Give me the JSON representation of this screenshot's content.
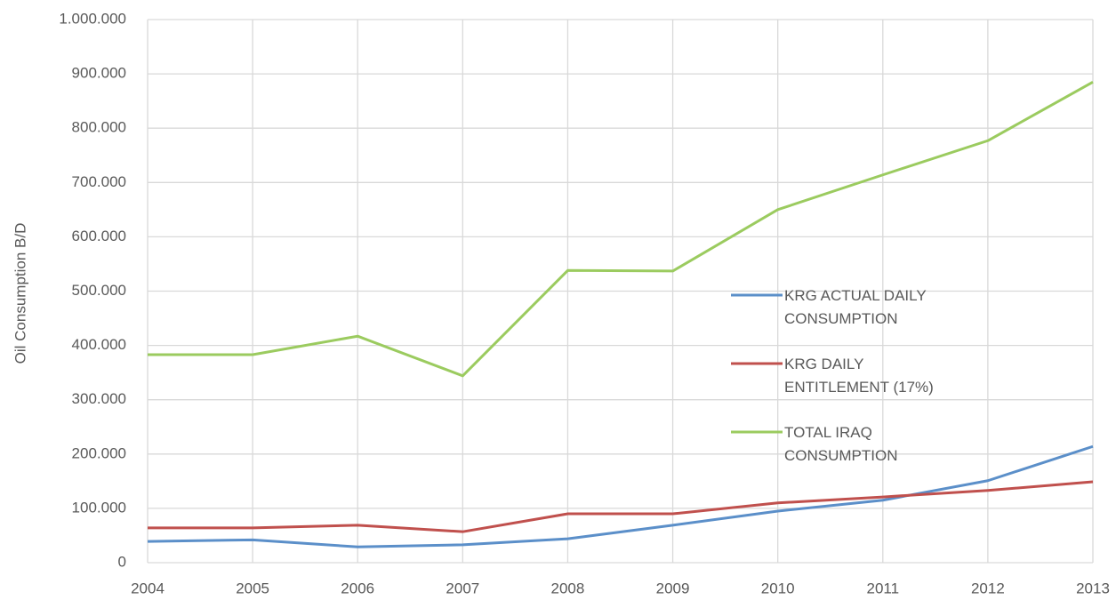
{
  "chart_data": {
    "type": "line",
    "y_label": "Oil Consumption B/D",
    "x": [
      2004,
      2005,
      2006,
      2007,
      2008,
      2009,
      2010,
      2011,
      2012,
      2013
    ],
    "xlim": [
      2004,
      2013
    ],
    "xticks": [
      2004,
      2005,
      2006,
      2007,
      2008,
      2009,
      2010,
      2011,
      2012,
      2013
    ],
    "ylim": [
      0,
      1000000
    ],
    "yticks": [
      0,
      {
        "value": 100000,
        "label": "100.000"
      },
      {
        "value": 200000,
        "label": "200.000"
      },
      {
        "value": 300000,
        "label": "300.000"
      },
      {
        "value": 400000,
        "label": "400.000"
      },
      {
        "value": 500000,
        "label": "500.000"
      },
      {
        "value": 600000,
        "label": "600.000"
      },
      {
        "value": 700000,
        "label": "700.000"
      },
      {
        "value": 800000,
        "label": "800.000"
      },
      {
        "value": 900000,
        "label": "900.000"
      },
      {
        "value": 1000000,
        "label": "1.000.000"
      }
    ],
    "grid": true,
    "legend": "center-right",
    "series": [
      {
        "name": "KRG ACTUAL DAILY CONSUMPTION",
        "color": "#5b8fc9",
        "values": [
          39000,
          42000,
          29000,
          33000,
          44000,
          69000,
          95000,
          115000,
          151000,
          214000
        ]
      },
      {
        "name": "KRG DAILY ENTITLEMENT (17%)",
        "color": "#c0504d",
        "values": [
          64000,
          64000,
          69000,
          57000,
          90000,
          90000,
          110000,
          121000,
          133000,
          149000
        ]
      },
      {
        "name": "TOTAL IRAQ CONSUMPTION",
        "color": "#9bcb5f",
        "values": [
          383000,
          383000,
          417000,
          344000,
          538000,
          537000,
          650000,
          714000,
          777000,
          885000
        ]
      }
    ]
  }
}
